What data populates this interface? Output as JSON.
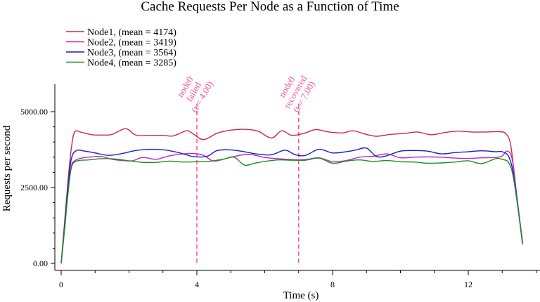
{
  "chart_data": {
    "type": "line",
    "title": "Cache Requests Per Node as a Function of Time",
    "xlabel": "Time (s)",
    "ylabel": "Requests per second",
    "xlim": [
      0,
      14
    ],
    "ylim": [
      0,
      5500
    ],
    "xticks": [
      0,
      4,
      8,
      12
    ],
    "xtick_labels": [
      "0",
      "4",
      "8",
      "12"
    ],
    "yticks": [
      0,
      2500,
      5000
    ],
    "ytick_labels": [
      "0.00",
      "2500.00",
      "5000.00"
    ],
    "grid": false,
    "legend_position": "top-left",
    "series": [
      {
        "name": "Node1, (mean = 4174)",
        "color": "#c8294c",
        "x": [
          0,
          0.1,
          0.2,
          0.3,
          0.4,
          0.6,
          0.9,
          1.2,
          1.5,
          1.9,
          2.2,
          2.6,
          3.0,
          3.3,
          3.7,
          3.9,
          4.2,
          4.6,
          5.0,
          5.4,
          5.8,
          6.2,
          6.5,
          6.8,
          7.2,
          7.5,
          7.9,
          8.3,
          8.6,
          9.0,
          9.3,
          9.7,
          10.1,
          10.5,
          10.9,
          11.3,
          11.7,
          12.1,
          12.5,
          12.9,
          13.1,
          13.25,
          13.4,
          13.6
        ],
        "y": [
          0,
          1350,
          2700,
          3800,
          4330,
          4320,
          4240,
          4230,
          4250,
          4440,
          4230,
          4220,
          4220,
          4200,
          4370,
          4260,
          4080,
          4290,
          4390,
          4420,
          4360,
          4130,
          4370,
          4220,
          4300,
          4410,
          4330,
          4300,
          4370,
          4250,
          4190,
          4250,
          4280,
          4330,
          4240,
          4310,
          4360,
          4330,
          4330,
          4340,
          4280,
          3900,
          2500,
          620
        ]
      },
      {
        "name": "Node2, (mean = 3419)",
        "color": "#bf26c9",
        "x": [
          0,
          0.1,
          0.2,
          0.3,
          0.4,
          0.6,
          0.9,
          1.2,
          1.5,
          1.8,
          2.1,
          2.4,
          2.8,
          3.1,
          3.5,
          3.9,
          4.2,
          4.5,
          4.9,
          5.3,
          5.6,
          6.0,
          6.4,
          6.8,
          7.2,
          7.6,
          8.0,
          8.4,
          8.8,
          9.2,
          9.6,
          10.0,
          10.4,
          10.8,
          11.2,
          11.6,
          12.0,
          12.4,
          12.8,
          13.0,
          13.15,
          13.3,
          13.45,
          13.6
        ],
        "y": [
          0,
          1150,
          2300,
          3200,
          3380,
          3470,
          3510,
          3520,
          3430,
          3390,
          3380,
          3490,
          3430,
          3520,
          3600,
          3620,
          3560,
          3370,
          3470,
          3570,
          3590,
          3490,
          3450,
          3420,
          3420,
          3480,
          3350,
          3390,
          3500,
          3530,
          3610,
          3480,
          3500,
          3510,
          3500,
          3470,
          3460,
          3480,
          3490,
          3540,
          3700,
          3400,
          2000,
          630
        ]
      },
      {
        "name": "Node3, (mean = 3564)",
        "color": "#1a1adb",
        "x": [
          0,
          0.1,
          0.2,
          0.3,
          0.45,
          0.7,
          1.0,
          1.4,
          1.8,
          2.2,
          2.7,
          3.1,
          3.5,
          3.9,
          4.3,
          4.6,
          5.0,
          5.4,
          5.8,
          6.2,
          6.6,
          6.9,
          7.2,
          7.6,
          8.0,
          8.4,
          8.7,
          9.0,
          9.3,
          9.6,
          10.0,
          10.4,
          10.8,
          11.2,
          11.6,
          12.0,
          12.4,
          12.8,
          13.0,
          13.2,
          13.35,
          13.6
        ],
        "y": [
          0,
          1200,
          2500,
          3450,
          3720,
          3700,
          3640,
          3560,
          3620,
          3720,
          3760,
          3730,
          3640,
          3520,
          3530,
          3720,
          3740,
          3680,
          3600,
          3580,
          3730,
          3580,
          3560,
          3760,
          3640,
          3680,
          3740,
          3800,
          3520,
          3550,
          3700,
          3720,
          3700,
          3610,
          3650,
          3680,
          3710,
          3680,
          3680,
          3500,
          2800,
          700
        ]
      },
      {
        "name": "Node4, (mean = 3285)",
        "color": "#1e8e1e",
        "x": [
          0,
          0.1,
          0.2,
          0.3,
          0.45,
          0.8,
          1.2,
          1.6,
          2.0,
          2.4,
          2.8,
          3.2,
          3.6,
          4.0,
          4.4,
          4.8,
          5.1,
          5.4,
          5.7,
          6.0,
          6.4,
          6.8,
          7.2,
          7.6,
          8.0,
          8.4,
          8.8,
          9.2,
          9.6,
          10.0,
          10.4,
          10.8,
          11.2,
          11.6,
          12.0,
          12.4,
          12.8,
          13.0,
          13.2,
          13.35,
          13.6
        ],
        "y": [
          0,
          1100,
          2300,
          3150,
          3370,
          3410,
          3450,
          3440,
          3380,
          3330,
          3330,
          3370,
          3340,
          3350,
          3370,
          3440,
          3500,
          3240,
          3300,
          3360,
          3410,
          3400,
          3400,
          3470,
          3300,
          3370,
          3410,
          3360,
          3390,
          3350,
          3340,
          3300,
          3310,
          3340,
          3380,
          3290,
          3450,
          3430,
          3300,
          2700,
          680
        ]
      }
    ],
    "annotations": [
      {
        "x": 4.0,
        "lines": [
          "node0",
          "failed",
          "(t = 4.00)"
        ],
        "color": "#ff4f9a",
        "style": "dashed"
      },
      {
        "x": 7.0,
        "lines": [
          "node0",
          "recovered",
          "(t = 7.00)"
        ],
        "color": "#ff4f9a",
        "style": "dashed"
      }
    ]
  }
}
